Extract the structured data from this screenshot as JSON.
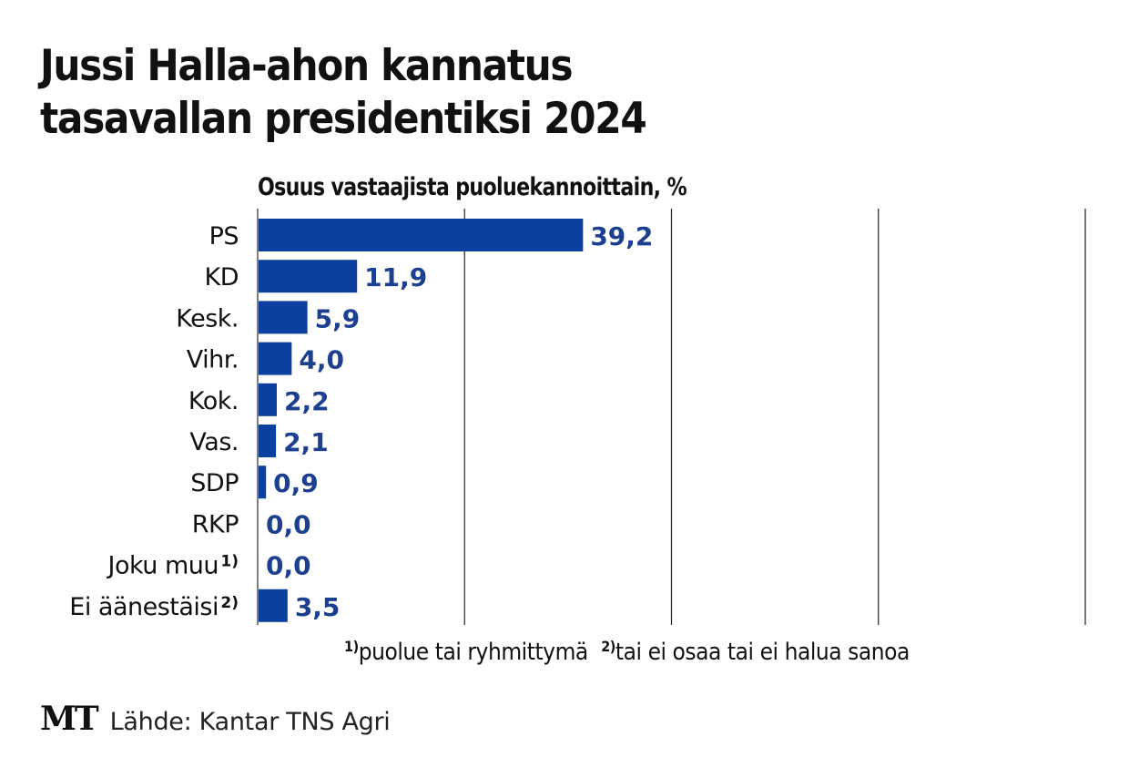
{
  "title_line1": "Jussi Halla-ahon kannatus",
  "title_line2": "tasavallan presidentiksi 2024",
  "footnotes": {
    "note1_marker": "1)",
    "note1_text": "puolue tai ryhmittymä",
    "note2_marker": "2)",
    "note2_text": "tai ei osaa tai ei halua sanoa"
  },
  "footer": {
    "logo": "MT",
    "source": "Lähde: Kantar TNS Agri"
  },
  "colors": {
    "bar": "#0b40a0",
    "value_label": "#1d3f8f",
    "grid": "#222222"
  },
  "chart_data": {
    "type": "bar",
    "orientation": "horizontal",
    "title": "Jussi Halla-ahon kannatus tasavallan presidentiksi 2024",
    "subtitle": "Osuus vastaajista puoluekannoittain, %",
    "xlabel": "",
    "ylabel": "",
    "xlim": [
      0,
      100
    ],
    "gridlines": [
      25,
      50,
      75,
      100
    ],
    "grid": true,
    "categories": [
      "PS",
      "KD",
      "Kesk.",
      "Vihr.",
      "Kok.",
      "Vas.",
      "SDP",
      "RKP",
      "Joku muu",
      "Ei äänestäisi"
    ],
    "category_superscripts": [
      "",
      "",
      "",
      "",
      "",
      "",
      "",
      "",
      "1)",
      "2)"
    ],
    "values": [
      39.2,
      11.9,
      5.9,
      4.0,
      2.2,
      2.1,
      0.9,
      0.0,
      0.0,
      3.5
    ],
    "value_labels": [
      "39,2",
      "11,9",
      "5,9",
      "4,0",
      "2,2",
      "2,1",
      "0,9",
      "0,0",
      "0,0",
      "3,5"
    ]
  }
}
